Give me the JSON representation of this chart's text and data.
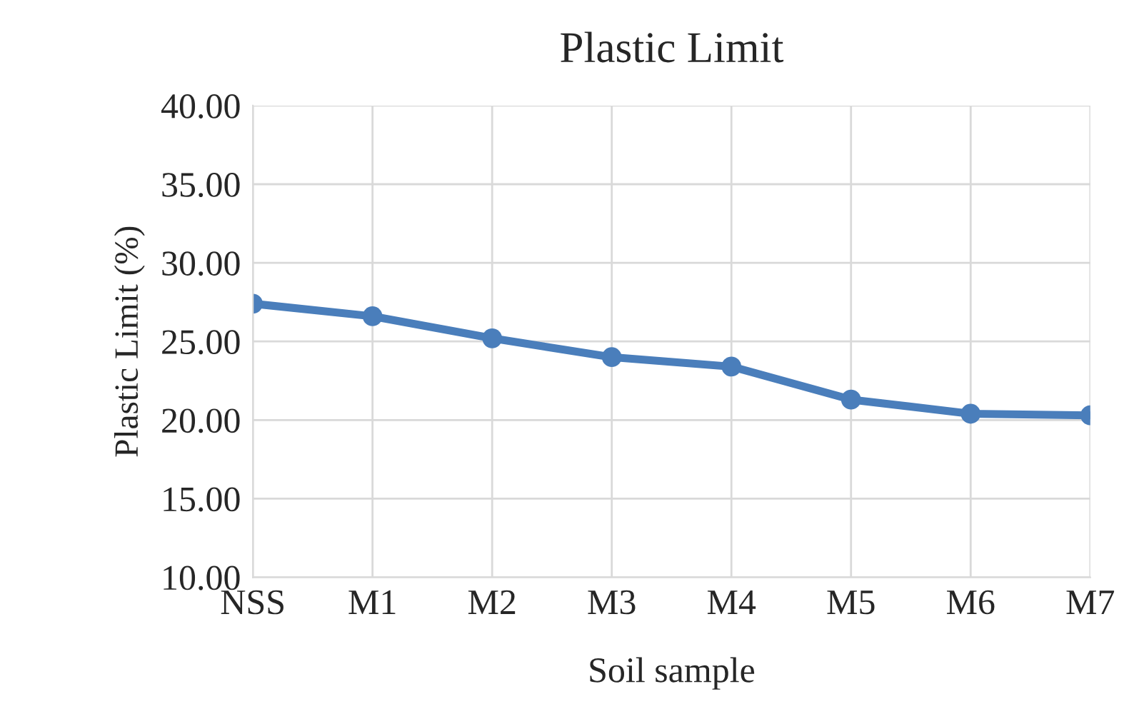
{
  "chart_data": {
    "type": "line",
    "title": "Plastic Limit",
    "xlabel": "Soil sample",
    "ylabel": "Plastic Limit (%)",
    "categories": [
      "NSS",
      "M1",
      "M2",
      "M3",
      "M4",
      "M5",
      "M6",
      "M7"
    ],
    "series": [
      {
        "color": "#4a7ebb",
        "values": [
          27.4,
          26.6,
          25.2,
          24.0,
          23.4,
          21.3,
          20.4,
          20.3
        ]
      }
    ],
    "ylim": [
      10,
      40
    ],
    "yticks": [
      {
        "value": 10,
        "label": "10.00"
      },
      {
        "value": 15,
        "label": "15.00"
      },
      {
        "value": 20,
        "label": "20.00"
      },
      {
        "value": 25,
        "label": "25.00"
      },
      {
        "value": 30,
        "label": "30.00"
      },
      {
        "value": 35,
        "label": "35.00"
      },
      {
        "value": 40,
        "label": "40.00"
      }
    ],
    "grid": true,
    "marker": "circle",
    "line_style": "solid",
    "legend": false
  }
}
